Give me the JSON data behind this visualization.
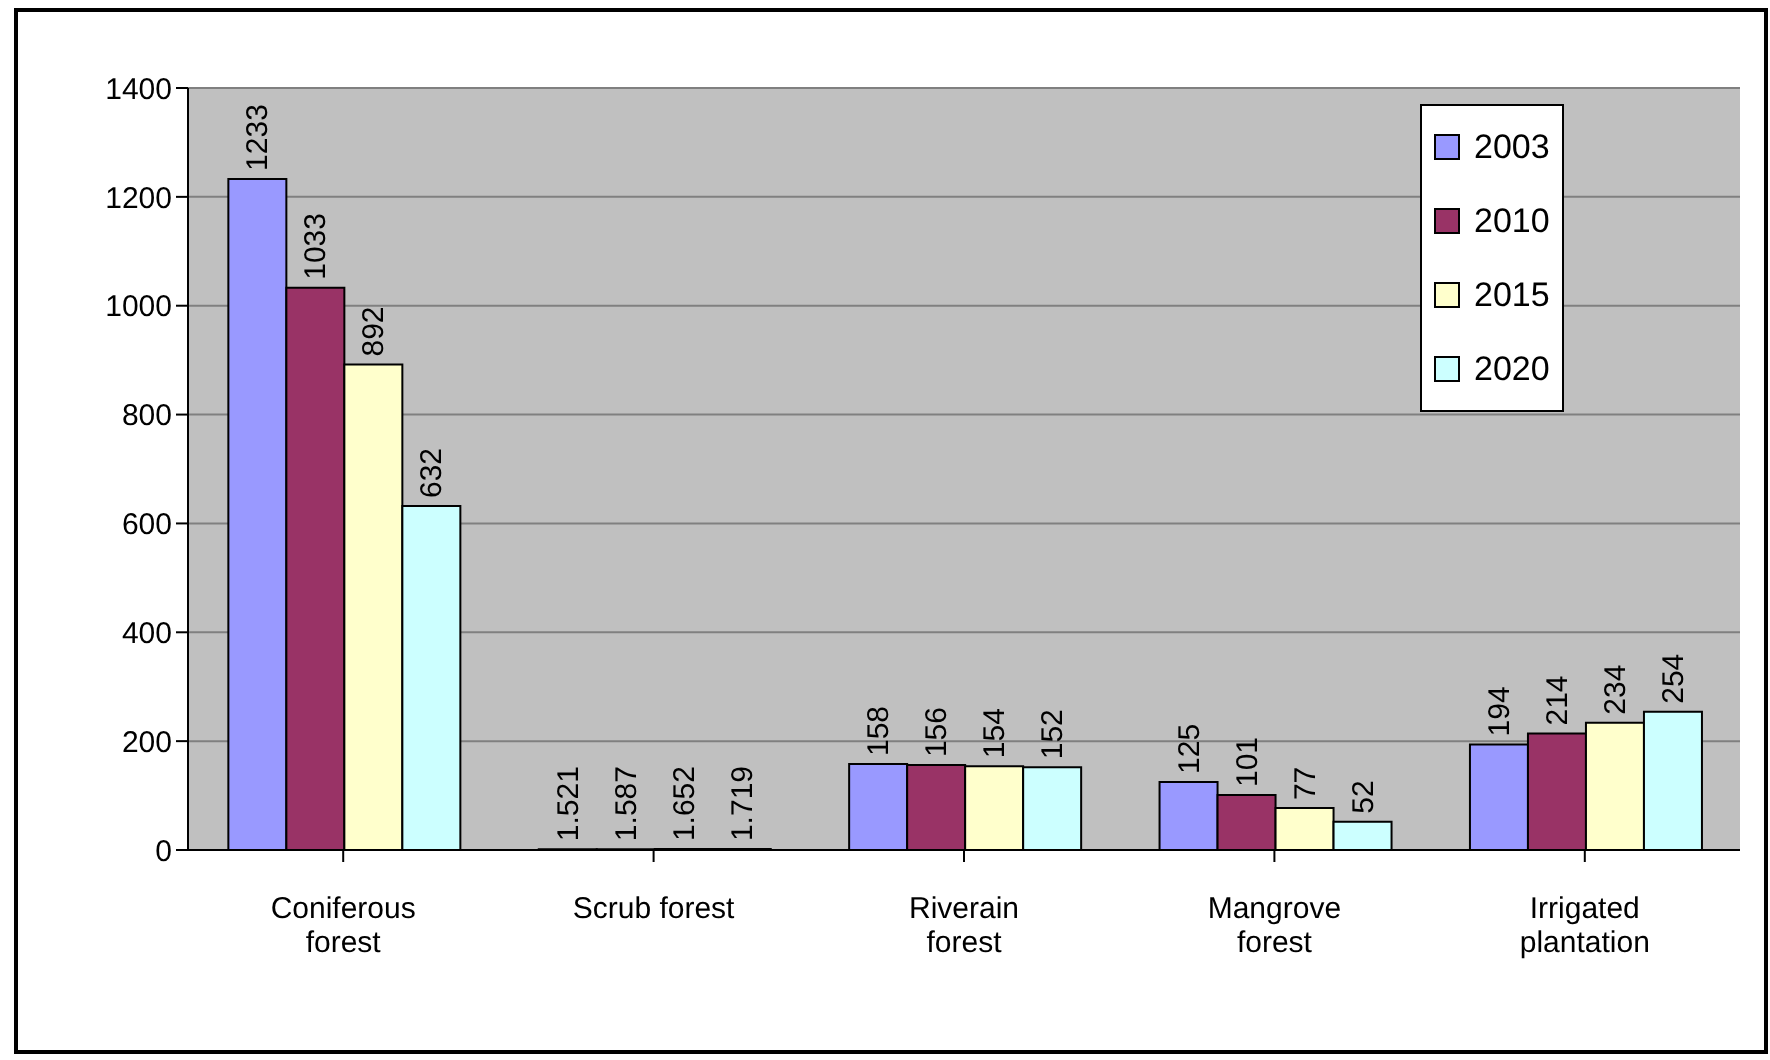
{
  "chart_data": {
    "type": "bar",
    "categories": [
      "Coniferous forest",
      "Scrub forest",
      "Riverain forest",
      "Mangrove forest",
      "Irrigated plantation"
    ],
    "series": [
      {
        "name": "2003",
        "color": "#9999ff",
        "values": [
          1233,
          1.521,
          158,
          125,
          194
        ]
      },
      {
        "name": "2010",
        "color": "#993366",
        "values": [
          1033,
          1.587,
          156,
          101,
          214
        ]
      },
      {
        "name": "2015",
        "color": "#ffffcc",
        "values": [
          892,
          1.652,
          154,
          77,
          234
        ]
      },
      {
        "name": "2020",
        "color": "#ccffff",
        "values": [
          632,
          1.719,
          152,
          52,
          254
        ]
      }
    ],
    "ylim": [
      0,
      1400
    ],
    "yticks": [
      0,
      200,
      400,
      600,
      800,
      1000,
      1200,
      1400
    ],
    "grid": "y",
    "legend": "top right",
    "data_labels": true
  }
}
